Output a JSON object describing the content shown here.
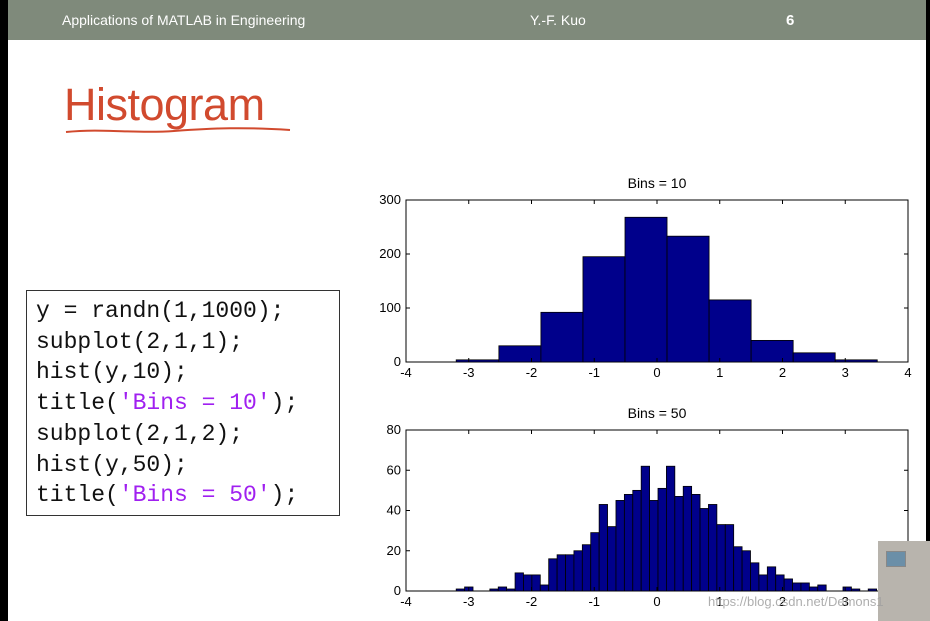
{
  "header": {
    "course_title": "Applications of MATLAB in Engineering",
    "author": "Y.-F. Kuo",
    "page_number": "6"
  },
  "slide_title": "Histogram",
  "code": {
    "lines": [
      {
        "pre": "y = randn(1,1000);",
        "str": "",
        "post": ""
      },
      {
        "pre": "subplot(2,1,1);",
        "str": "",
        "post": ""
      },
      {
        "pre": "hist(y,10);",
        "str": "",
        "post": ""
      },
      {
        "pre": "title(",
        "str": "'Bins = 10'",
        "post": ");"
      },
      {
        "pre": "subplot(2,1,2);",
        "str": "",
        "post": ""
      },
      {
        "pre": "hist(y,50);",
        "str": "",
        "post": ""
      },
      {
        "pre": "title(",
        "str": "'Bins = 50'",
        "post": ");"
      }
    ],
    "string_color": "#a020f0"
  },
  "watermark": "https://blog.csdn.net/Demons1",
  "colors": {
    "bar_fill": "#00008b",
    "accent": "#d14a2e",
    "header_bg": "#7f8a7b"
  },
  "chart_data": [
    {
      "type": "bar",
      "title": "Bins = 10",
      "xlim": [
        -4,
        4
      ],
      "ylim": [
        0,
        300
      ],
      "xticks": [
        -4,
        -3,
        -2,
        -1,
        0,
        1,
        2,
        3,
        4
      ],
      "yticks": [
        0,
        100,
        200,
        300
      ],
      "bin_edges": [
        -3.2,
        -2.52,
        -1.85,
        -1.18,
        -0.51,
        0.16,
        0.83,
        1.5,
        2.17,
        2.84,
        3.51
      ],
      "values": [
        4,
        30,
        92,
        195,
        268,
        233,
        115,
        40,
        17,
        4
      ]
    },
    {
      "type": "bar",
      "title": "Bins = 50",
      "xlim": [
        -4,
        4
      ],
      "ylim": [
        0,
        80
      ],
      "xticks": [
        -4,
        -3,
        -2,
        -1,
        0,
        1,
        2,
        3
      ],
      "yticks": [
        0,
        20,
        40,
        60,
        80
      ],
      "bin_edges_start": -3.2,
      "bin_width": 0.134,
      "values": [
        1,
        2,
        0,
        0,
        1,
        2,
        1,
        9,
        8,
        8,
        3,
        16,
        18,
        18,
        20,
        23,
        29,
        43,
        32,
        45,
        48,
        50,
        62,
        45,
        51,
        62,
        47,
        52,
        48,
        41,
        43,
        33,
        33,
        22,
        20,
        14,
        8,
        12,
        8,
        6,
        4,
        4,
        2,
        3,
        0,
        0,
        2,
        1,
        0,
        1
      ]
    }
  ]
}
